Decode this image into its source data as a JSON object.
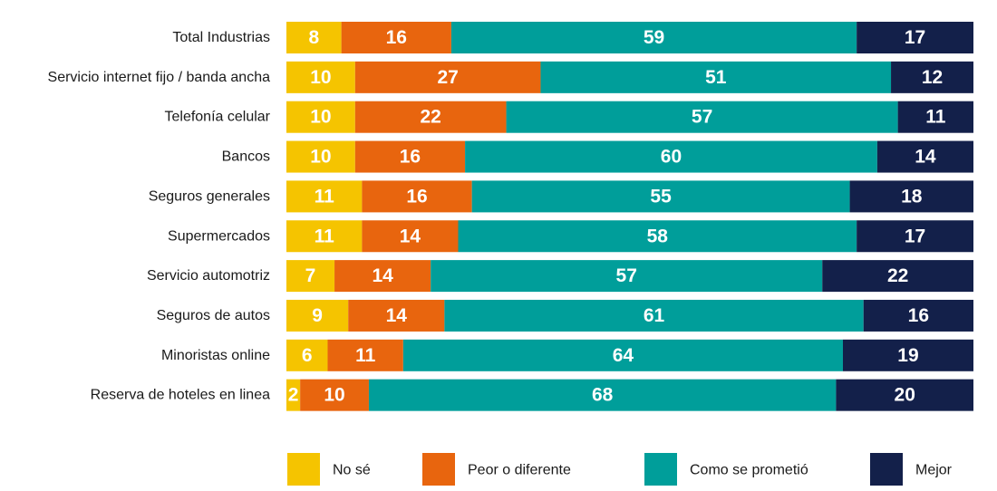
{
  "chart_data": {
    "type": "bar",
    "orientation": "horizontal",
    "stacked": true,
    "categories": [
      "Total Industrias",
      "Servicio internet fijo / banda ancha",
      "Telefonía celular",
      "Bancos",
      "Seguros generales",
      "Supermercados",
      "Servicio automotriz",
      "Seguros de autos",
      "Minoristas online",
      "Reserva de hoteles en linea"
    ],
    "series": [
      {
        "name": "No sé",
        "color": "#F5C400",
        "values": [
          8,
          10,
          10,
          10,
          11,
          11,
          7,
          9,
          6,
          2
        ]
      },
      {
        "name": "Peor o diferente",
        "color": "#E8650E",
        "values": [
          16,
          27,
          22,
          16,
          16,
          14,
          14,
          14,
          11,
          10
        ]
      },
      {
        "name": "Como se prometió",
        "color": "#009E9A",
        "values": [
          59,
          51,
          57,
          60,
          55,
          58,
          57,
          61,
          64,
          68
        ]
      },
      {
        "name": "Mejor",
        "color": "#13204A",
        "values": [
          17,
          12,
          11,
          14,
          18,
          17,
          22,
          16,
          19,
          20
        ]
      }
    ],
    "xlim": [
      0,
      100
    ],
    "legend_position": "bottom",
    "grid": false
  }
}
